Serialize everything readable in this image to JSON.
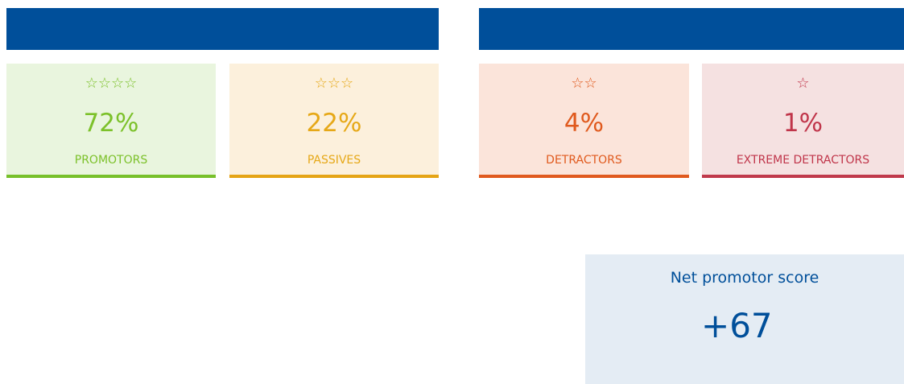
{
  "cards": [
    {
      "stars": "☆☆☆☆",
      "percent": "72%",
      "label": "PROMOTORS"
    },
    {
      "stars": "☆☆☆",
      "percent": "22%",
      "label": "PASSIVES"
    },
    {
      "stars": "☆☆",
      "percent": "4%",
      "label": "DETRACTORS"
    },
    {
      "stars": "☆",
      "percent": "1%",
      "label": "EXTREME DETRACTORS"
    }
  ],
  "score": {
    "title": "Net promotor score",
    "value": "+67"
  }
}
